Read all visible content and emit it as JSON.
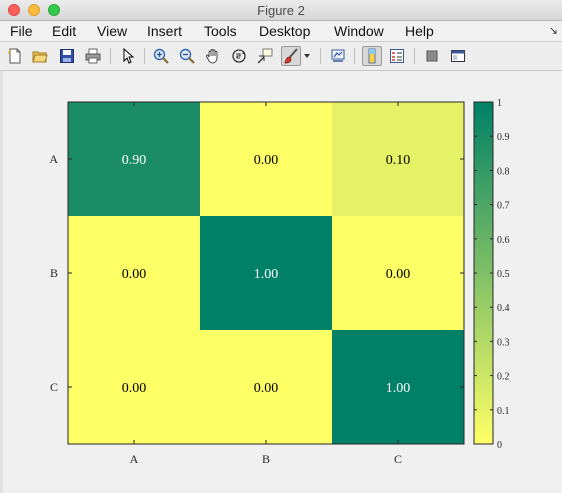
{
  "window": {
    "title": "Figure 2"
  },
  "menu": {
    "items": [
      "File",
      "Edit",
      "View",
      "Insert",
      "Tools",
      "Desktop",
      "Window",
      "Help"
    ],
    "overflow_glyph": "↘"
  },
  "toolbar": {
    "icons": [
      "new-figure-icon",
      "open-file-icon",
      "save-icon",
      "print-icon",
      "pointer-icon",
      "zoom-in-icon",
      "zoom-out-icon",
      "pan-hand-icon",
      "rotate-3d-icon",
      "data-cursor-icon",
      "brush-icon",
      "brush-dropdown-icon",
      "link-plot-icon",
      "colorbar-icon",
      "legend-icon",
      "hide-plot-tools-icon",
      "show-plot-tools-icon"
    ]
  },
  "chart_data": {
    "type": "heatmap",
    "x_categories": [
      "A",
      "B",
      "C"
    ],
    "y_categories": [
      "A",
      "B",
      "C"
    ],
    "values": [
      [
        0.9,
        0.0,
        0.1
      ],
      [
        0.0,
        1.0,
        0.0
      ],
      [
        0.0,
        0.0,
        1.0
      ]
    ],
    "value_labels": [
      [
        "0.90",
        "0.00",
        "0.10"
      ],
      [
        "0.00",
        "1.00",
        "0.00"
      ],
      [
        "0.00",
        "0.00",
        "1.00"
      ]
    ],
    "colormap": "summer-reversed",
    "color_low": "#ffff66",
    "color_high": "#008066",
    "colorbar": {
      "range": [
        0,
        1
      ],
      "ticks": [
        0,
        0.1,
        0.2,
        0.3,
        0.4,
        0.5,
        0.6,
        0.7,
        0.8,
        0.9,
        1
      ],
      "tick_labels": [
        "0",
        "0.1",
        "0.2",
        "0.3",
        "0.4",
        "0.5",
        "0.6",
        "0.7",
        "0.8",
        "0.9",
        "1"
      ],
      "placement": "right"
    }
  }
}
